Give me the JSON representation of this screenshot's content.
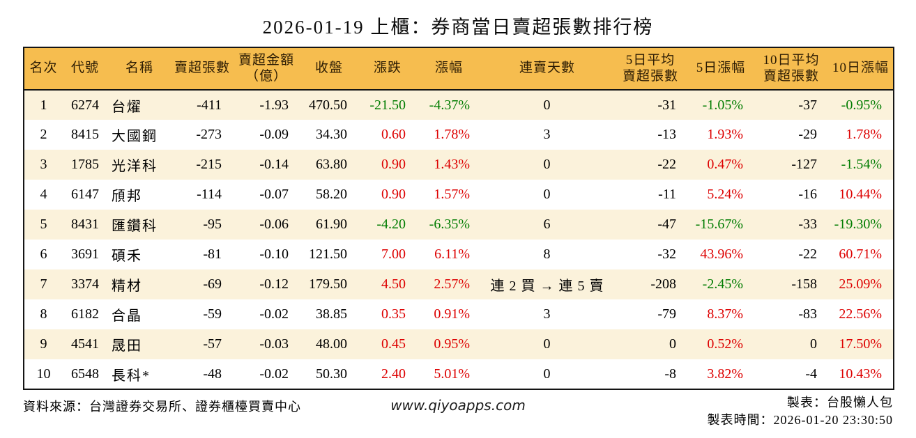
{
  "title": "2026-01-19 上櫃：券商當日賣超張數排行榜",
  "colors": {
    "header_bg": "#F6BD4F",
    "stripe_bg": "#FBF2DB",
    "up_red": "#DD0000",
    "down_green": "#007C00",
    "border": "#141414"
  },
  "table": {
    "headers": [
      "名次",
      "代號",
      "名稱",
      "賣超張數",
      "賣超金額\n（億）",
      "收盤",
      "漲跌",
      "漲幅",
      "連賣天數",
      "5日平均\n賣超張數",
      "5日漲幅",
      "10日平均\n賣超張數",
      "10日漲幅"
    ],
    "column_keys": [
      "rank",
      "code",
      "name",
      "sell-volume",
      "sell-amount",
      "close",
      "change",
      "change-pct",
      "sell-streak",
      "avg5-sell-volume",
      "pct5",
      "avg10-sell-volume",
      "pct10"
    ],
    "sign_colored_columns": [
      6,
      7,
      10,
      12
    ],
    "rows": [
      [
        "1",
        "6274",
        "台燿",
        "-411",
        "-1.93",
        "470.50",
        "-21.50",
        "-4.37%",
        "0",
        "-31",
        "-1.05%",
        "-37",
        "-0.95%"
      ],
      [
        "2",
        "8415",
        "大國鋼",
        "-273",
        "-0.09",
        "34.30",
        "0.60",
        "1.78%",
        "3",
        "-13",
        "1.93%",
        "-29",
        "1.78%"
      ],
      [
        "3",
        "1785",
        "光洋科",
        "-215",
        "-0.14",
        "63.80",
        "0.90",
        "1.43%",
        "0",
        "-22",
        "0.47%",
        "-127",
        "-1.54%"
      ],
      [
        "4",
        "6147",
        "頎邦",
        "-114",
        "-0.07",
        "58.20",
        "0.90",
        "1.57%",
        "0",
        "-11",
        "5.24%",
        "-16",
        "10.44%"
      ],
      [
        "5",
        "8431",
        "匯鑽科",
        "-95",
        "-0.06",
        "61.90",
        "-4.20",
        "-6.35%",
        "6",
        "-47",
        "-15.67%",
        "-33",
        "-19.30%"
      ],
      [
        "6",
        "3691",
        "碩禾",
        "-81",
        "-0.10",
        "121.50",
        "7.00",
        "6.11%",
        "8",
        "-32",
        "43.96%",
        "-22",
        "60.71%"
      ],
      [
        "7",
        "3374",
        "精材",
        "-69",
        "-0.12",
        "179.50",
        "4.50",
        "2.57%",
        "連 2 買 → 連 5 賣",
        "-208",
        "-2.45%",
        "-158",
        "25.09%"
      ],
      [
        "8",
        "6182",
        "合晶",
        "-59",
        "-0.02",
        "38.85",
        "0.35",
        "0.91%",
        "3",
        "-79",
        "8.37%",
        "-83",
        "22.56%"
      ],
      [
        "9",
        "4541",
        "晟田",
        "-57",
        "-0.03",
        "48.00",
        "0.45",
        "0.95%",
        "0",
        "0",
        "0.52%",
        "0",
        "17.50%"
      ],
      [
        "10",
        "6548",
        "長科*",
        "-48",
        "-0.02",
        "50.30",
        "2.40",
        "5.01%",
        "0",
        "-8",
        "3.82%",
        "-4",
        "10.43%"
      ]
    ]
  },
  "footer": {
    "source": "資料來源：台灣證券交易所、證券櫃檯買賣中心",
    "website": "www.qiyoapps.com",
    "maker": "製表：台股懶人包",
    "timestamp": "製表時間：2026-01-20 23:30:50"
  }
}
